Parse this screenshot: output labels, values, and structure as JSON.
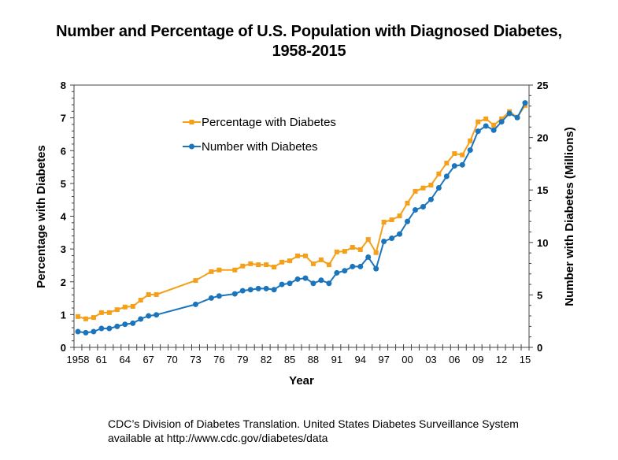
{
  "chart_data": {
    "type": "line",
    "title_line1": "Number and Percentage of U.S. Population with Diagnosed Diabetes,",
    "title_line2": "1958-2015",
    "xlabel": "Year",
    "ylabel": "Percentage with Diabetes",
    "y2label": "Number with Diabetes (Millions)",
    "x_range": [
      1958,
      2015
    ],
    "ylim": [
      0,
      8
    ],
    "y2lim": [
      0,
      25
    ],
    "yticks": [
      0,
      1,
      2,
      3,
      4,
      5,
      6,
      7,
      8
    ],
    "y2ticks": [
      0,
      5,
      10,
      15,
      20,
      25
    ],
    "xtick_labels": [
      {
        "year": 1958,
        "label": "1958"
      },
      {
        "year": 1961,
        "label": "61"
      },
      {
        "year": 1964,
        "label": "64"
      },
      {
        "year": 1967,
        "label": "67"
      },
      {
        "year": 1970,
        "label": "70"
      },
      {
        "year": 1973,
        "label": "73"
      },
      {
        "year": 1976,
        "label": "76"
      },
      {
        "year": 1979,
        "label": "79"
      },
      {
        "year": 1982,
        "label": "82"
      },
      {
        "year": 1985,
        "label": "85"
      },
      {
        "year": 1988,
        "label": "88"
      },
      {
        "year": 1991,
        "label": "91"
      },
      {
        "year": 1994,
        "label": "94"
      },
      {
        "year": 1997,
        "label": "97"
      },
      {
        "year": 2000,
        "label": "00"
      },
      {
        "year": 2003,
        "label": "03"
      },
      {
        "year": 2006,
        "label": "06"
      },
      {
        "year": 2009,
        "label": "09"
      },
      {
        "year": 2012,
        "label": "12"
      },
      {
        "year": 2015,
        "label": "15"
      }
    ],
    "grid": false,
    "legend_position": "top-center",
    "series": [
      {
        "name": "Percentage with Diabetes",
        "axis": "left",
        "color": "#F5A01A",
        "marker": "square",
        "points": [
          [
            1958,
            0.94
          ],
          [
            1959,
            0.87
          ],
          [
            1960,
            0.91
          ],
          [
            1961,
            1.06
          ],
          [
            1962,
            1.06
          ],
          [
            1963,
            1.15
          ],
          [
            1964,
            1.23
          ],
          [
            1965,
            1.25
          ],
          [
            1966,
            1.44
          ],
          [
            1967,
            1.61
          ],
          [
            1968,
            1.61
          ],
          [
            1973,
            2.04
          ],
          [
            1975,
            2.31
          ],
          [
            1976,
            2.36
          ],
          [
            1978,
            2.36
          ],
          [
            1979,
            2.48
          ],
          [
            1980,
            2.55
          ],
          [
            1981,
            2.52
          ],
          [
            1982,
            2.52
          ],
          [
            1983,
            2.45
          ],
          [
            1984,
            2.6
          ],
          [
            1985,
            2.64
          ],
          [
            1986,
            2.79
          ],
          [
            1987,
            2.79
          ],
          [
            1988,
            2.55
          ],
          [
            1989,
            2.67
          ],
          [
            1990,
            2.52
          ],
          [
            1991,
            2.91
          ],
          [
            1992,
            2.93
          ],
          [
            1993,
            3.05
          ],
          [
            1994,
            2.98
          ],
          [
            1995,
            3.29
          ],
          [
            1996,
            2.89
          ],
          [
            1997,
            3.82
          ],
          [
            1998,
            3.89
          ],
          [
            1999,
            4.01
          ],
          [
            2000,
            4.4
          ],
          [
            2001,
            4.76
          ],
          [
            2002,
            4.86
          ],
          [
            2003,
            4.95
          ],
          [
            2004,
            5.29
          ],
          [
            2005,
            5.62
          ],
          [
            2006,
            5.91
          ],
          [
            2007,
            5.87
          ],
          [
            2008,
            6.3
          ],
          [
            2009,
            6.88
          ],
          [
            2010,
            6.97
          ],
          [
            2011,
            6.78
          ],
          [
            2012,
            6.97
          ],
          [
            2013,
            7.19
          ],
          [
            2014,
            7.02
          ],
          [
            2015,
            7.38
          ]
        ]
      },
      {
        "name": "Number with Diabetes",
        "axis": "right",
        "color": "#1B75BC",
        "marker": "circle",
        "points": [
          [
            1958,
            1.5
          ],
          [
            1959,
            1.4
          ],
          [
            1960,
            1.5
          ],
          [
            1961,
            1.8
          ],
          [
            1962,
            1.8
          ],
          [
            1963,
            2.0
          ],
          [
            1964,
            2.2
          ],
          [
            1965,
            2.3
          ],
          [
            1966,
            2.7
          ],
          [
            1967,
            3.0
          ],
          [
            1968,
            3.1
          ],
          [
            1973,
            4.1
          ],
          [
            1975,
            4.7
          ],
          [
            1976,
            4.9
          ],
          [
            1978,
            5.1
          ],
          [
            1979,
            5.4
          ],
          [
            1980,
            5.5
          ],
          [
            1981,
            5.6
          ],
          [
            1982,
            5.6
          ],
          [
            1983,
            5.5
          ],
          [
            1984,
            6.0
          ],
          [
            1985,
            6.1
          ],
          [
            1986,
            6.5
          ],
          [
            1987,
            6.6
          ],
          [
            1988,
            6.1
          ],
          [
            1989,
            6.4
          ],
          [
            1990,
            6.1
          ],
          [
            1991,
            7.1
          ],
          [
            1992,
            7.3
          ],
          [
            1993,
            7.7
          ],
          [
            1994,
            7.7
          ],
          [
            1995,
            8.6
          ],
          [
            1996,
            7.5
          ],
          [
            1997,
            10.1
          ],
          [
            1998,
            10.4
          ],
          [
            1999,
            10.8
          ],
          [
            2000,
            12.0
          ],
          [
            2001,
            13.1
          ],
          [
            2002,
            13.4
          ],
          [
            2003,
            14.1
          ],
          [
            2004,
            15.2
          ],
          [
            2005,
            16.3
          ],
          [
            2006,
            17.3
          ],
          [
            2007,
            17.4
          ],
          [
            2008,
            18.8
          ],
          [
            2009,
            20.6
          ],
          [
            2010,
            21.1
          ],
          [
            2011,
            20.7
          ],
          [
            2012,
            21.5
          ],
          [
            2013,
            22.3
          ],
          [
            2014,
            21.9
          ],
          [
            2015,
            23.3
          ]
        ]
      }
    ]
  },
  "footer": {
    "line1": "CDC’s Division of Diabetes Translation. United States Diabetes Surveillance System",
    "line2": "available at http://www.cdc.gov/diabetes/data"
  }
}
